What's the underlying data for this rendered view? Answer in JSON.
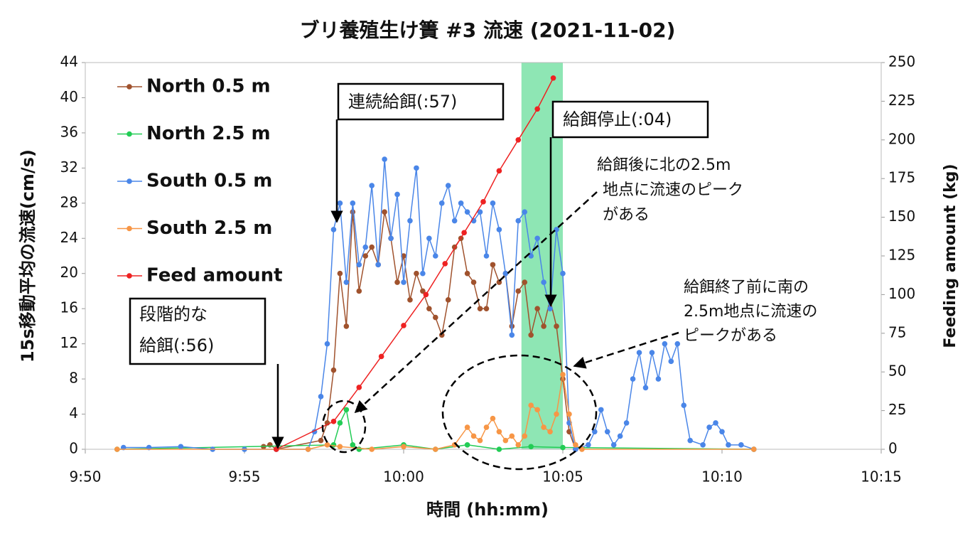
{
  "chart_data": {
    "type": "line",
    "title": "ブリ養殖生け簀 #3 流速 (2021-11-02)",
    "x_label": "時間 (hh:mm)",
    "y_label": "15s移動平均の流速(cm/s)",
    "y2_label": "Feeding amount (kg)",
    "xlim": [
      590,
      615
    ],
    "xticks": [
      {
        "value": 590,
        "label": "9:50"
      },
      {
        "value": 595,
        "label": "9:55"
      },
      {
        "value": 600,
        "label": "10:00"
      },
      {
        "value": 605,
        "label": "10:05"
      },
      {
        "value": 610,
        "label": "10:10"
      },
      {
        "value": 615,
        "label": "10:15"
      }
    ],
    "ylim": [
      0,
      44
    ],
    "yticks": [
      0,
      4,
      8,
      12,
      16,
      20,
      24,
      28,
      32,
      36,
      40,
      44
    ],
    "y2lim": [
      0,
      250
    ],
    "y2ticks": [
      0,
      25,
      50,
      75,
      100,
      125,
      150,
      175,
      200,
      225,
      250
    ],
    "highlight_span": [
      603.7,
      605.0
    ],
    "highlight_color": "#8ee6b4",
    "legend": "upper left",
    "series": [
      {
        "name": "North 0.5 m",
        "color": "#a0522d",
        "x": [
          595.6,
          595.8,
          596.0,
          597.4,
          597.6,
          597.8,
          598.0,
          598.2,
          598.4,
          598.6,
          598.8,
          599.0,
          599.2,
          599.4,
          599.6,
          599.8,
          600.0,
          600.2,
          600.4,
          600.6,
          600.8,
          601.0,
          601.2,
          601.4,
          601.6,
          601.8,
          602.0,
          602.2,
          602.4,
          602.6,
          602.8,
          603.0,
          603.2,
          603.4,
          603.6,
          603.8,
          604.0,
          604.2,
          604.4,
          604.6,
          604.8,
          605.0,
          605.2,
          605.4
        ],
        "values": [
          0.3,
          0.5,
          0,
          1,
          3,
          9,
          20,
          14,
          27,
          18,
          22,
          23,
          21,
          27,
          24,
          19,
          22,
          17,
          20,
          18,
          16,
          15,
          13,
          17,
          23,
          24,
          20,
          19,
          16,
          16,
          21,
          19,
          20,
          14,
          18,
          19,
          13,
          16,
          14,
          17,
          14,
          8,
          2,
          0
        ]
      },
      {
        "name": "North 2.5 m",
        "color": "#22cc55",
        "x": [
          591.0,
          597.8,
          598.0,
          598.2,
          598.4,
          598.6,
          600.0,
          601.0,
          602.0,
          603.0,
          604.0,
          605.0,
          611.0
        ],
        "values": [
          0,
          0.5,
          3,
          4.5,
          0.5,
          0,
          0.5,
          0,
          0.5,
          0,
          0.3,
          0.2,
          0
        ]
      },
      {
        "name": "South 0.5 m",
        "color": "#4a86e8",
        "x": [
          591.2,
          592.0,
          593.0,
          594.0,
          595.0,
          596.0,
          597.0,
          597.2,
          597.4,
          597.6,
          597.8,
          598.0,
          598.2,
          598.4,
          598.6,
          598.8,
          599.0,
          599.2,
          599.4,
          599.6,
          599.8,
          600.0,
          600.2,
          600.4,
          600.6,
          600.8,
          601.0,
          601.2,
          601.4,
          601.6,
          601.8,
          602.0,
          602.2,
          602.4,
          602.6,
          602.8,
          603.0,
          603.2,
          603.4,
          603.6,
          603.8,
          604.0,
          604.2,
          604.4,
          604.6,
          604.8,
          605.0,
          605.2,
          605.4,
          605.8,
          606.0,
          606.2,
          606.4,
          606.6,
          606.8,
          607.0,
          607.2,
          607.4,
          607.6,
          607.8,
          608.0,
          608.2,
          608.4,
          608.6,
          608.8,
          609.0,
          609.4,
          609.6,
          609.8,
          610.0,
          610.2,
          610.6,
          611.0
        ],
        "values": [
          0.2,
          0.2,
          0.3,
          0,
          0,
          0,
          0,
          2,
          6,
          12,
          25,
          28,
          19,
          28,
          21,
          23,
          30,
          21,
          33,
          24,
          29,
          19,
          26,
          32,
          20,
          24,
          22,
          28,
          30,
          26,
          28,
          27,
          26,
          27,
          22,
          28,
          25,
          20,
          13,
          26,
          27,
          22,
          24,
          19,
          16,
          25,
          20,
          3,
          0,
          0.5,
          2,
          4.5,
          2,
          0.5,
          1.5,
          3,
          8,
          11,
          7,
          11,
          8,
          12,
          10,
          12,
          5,
          1,
          0.5,
          2.5,
          3,
          2,
          0.5,
          0.5,
          0
        ]
      },
      {
        "name": "South 2.5 m",
        "color": "#f79646",
        "x": [
          591.0,
          597.0,
          597.6,
          598.0,
          599.0,
          600.0,
          601.0,
          601.6,
          602.0,
          602.2,
          602.4,
          602.6,
          602.8,
          603.0,
          603.2,
          603.4,
          603.6,
          603.8,
          604.0,
          604.2,
          604.4,
          604.6,
          604.8,
          605.0,
          605.2,
          605.4,
          605.6,
          611.0
        ],
        "values": [
          0,
          0,
          0.5,
          0.3,
          0,
          0.3,
          0,
          0.5,
          2.5,
          1.5,
          1,
          2.5,
          3.5,
          2,
          1,
          1.5,
          0.5,
          1.5,
          5,
          4.5,
          2.5,
          2,
          4,
          8.5,
          4,
          0.5,
          0,
          0
        ]
      },
      {
        "name": "Feed amount",
        "color": "#ee2222",
        "axis": "y2",
        "x": [
          596.0,
          597.8,
          598.6,
          599.3,
          600.0,
          600.7,
          601.3,
          601.9,
          602.5,
          603.0,
          603.6,
          604.2,
          604.7
        ],
        "values": [
          0,
          18,
          40,
          60,
          80,
          100,
          120,
          140,
          160,
          180,
          200,
          220,
          240
        ]
      }
    ],
    "annotations": [
      {
        "lines": [
          "連続給餌(:57)"
        ]
      },
      {
        "lines": [
          "給餌停止(:04)"
        ]
      },
      {
        "lines": [
          "段階的な",
          "給餌(:56)"
        ]
      },
      {
        "lines": [
          "給餌後に北の2.5m",
          "地点に流速のピーク",
          "がある"
        ]
      },
      {
        "lines": [
          "給餌終了前に南の",
          "2.5m地点に流速の",
          "ピークがある"
        ]
      }
    ]
  }
}
